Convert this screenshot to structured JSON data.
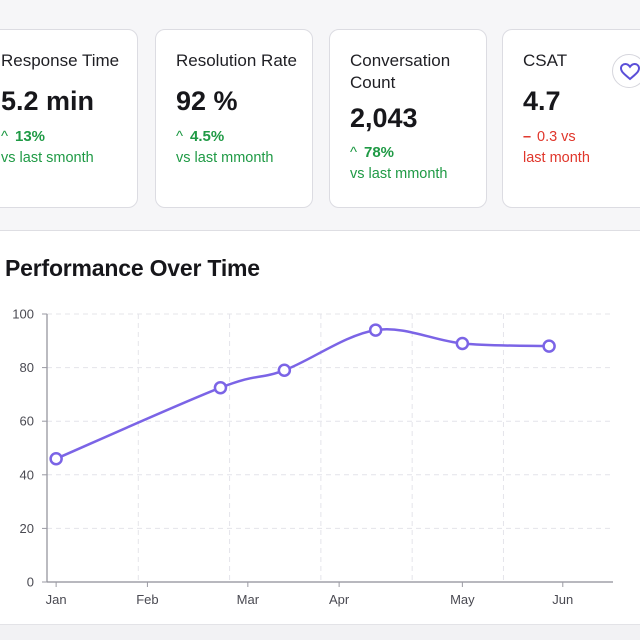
{
  "metrics": [
    {
      "label": "Response Time",
      "value": "5.2 min",
      "delta": "13%",
      "direction": "up",
      "comparison": "vs last smonth"
    },
    {
      "label": "Resolution Rate",
      "value": "92 %",
      "delta": "4.5%",
      "direction": "up",
      "comparison": "vs last mmonth"
    },
    {
      "label": "Conversation Count",
      "value": "2,043",
      "delta": "78%",
      "direction": "up",
      "comparison": "vs last mmonth"
    },
    {
      "label": "CSAT",
      "value": "4.7",
      "delta": "0.3 vs",
      "direction": "down",
      "comparison": "last month"
    }
  ],
  "colors": {
    "up": "#1f9a45",
    "down": "#e0362b",
    "line": "#7b64e6",
    "heart": "#5b4fd8"
  },
  "icons": {
    "up_arrow": "up-arrow-icon",
    "down_dash": "minus-icon",
    "favorite": "heart-icon"
  },
  "chart_data": {
    "type": "line",
    "title": "Performance Over Time",
    "categories": [
      "Jan",
      "Feb",
      "Mar",
      "Apr",
      "May",
      "Jun"
    ],
    "x": [
      0.1,
      1.9,
      2.6,
      3.6,
      4.55,
      5.5
    ],
    "values": [
      46,
      72.5,
      79,
      94,
      89,
      88
    ],
    "ylim": [
      0,
      100
    ],
    "yticks": [
      0,
      20,
      40,
      60,
      80,
      100
    ],
    "xlim": [
      0,
      6.2
    ],
    "xlabel": "",
    "ylabel": "",
    "grid": true,
    "legend": "none"
  }
}
